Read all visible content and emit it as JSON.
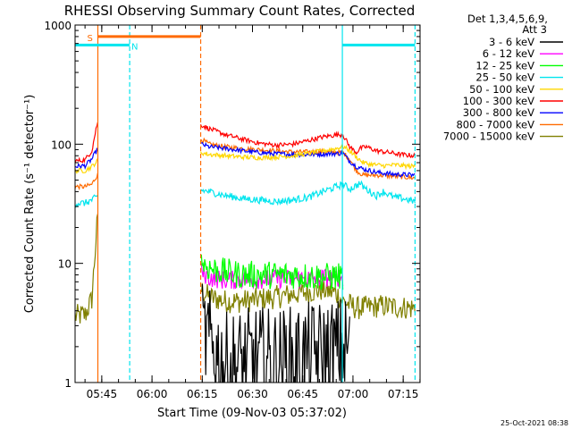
{
  "chart_data": {
    "type": "line",
    "title": "RHESSI Observing Summary Count Rates, Corrected",
    "xlabel": "Start Time (09-Nov-03 05:37:02)",
    "ylabel": "Corrected Count Rate (s⁻¹ detector⁻¹)",
    "y_scale": "log",
    "ylim": [
      1,
      1000
    ],
    "xlim_minutes": [
      0,
      103
    ],
    "x_ticks": [
      {
        "label": "05:45",
        "minute": 7.97
      },
      {
        "label": "06:00",
        "minute": 22.97
      },
      {
        "label": "06:15",
        "minute": 37.97
      },
      {
        "label": "06:30",
        "minute": 52.97
      },
      {
        "label": "06:45",
        "minute": 67.97
      },
      {
        "label": "07:00",
        "minute": 82.97
      },
      {
        "label": "07:15",
        "minute": 97.97
      }
    ],
    "y_ticks": [
      {
        "label": "1",
        "value": 1
      },
      {
        "label": "10",
        "value": 10
      },
      {
        "label": "100",
        "value": 100
      },
      {
        "label": "1000",
        "value": 1000
      }
    ],
    "legend_header": [
      "Det 1,3,4,5,6,9,",
      "Att 3"
    ],
    "timestamp": "25-Oct-2021 08:38",
    "flags": [
      {
        "label": "S",
        "color": "#ff6a00",
        "start": 6.8,
        "end": 37.5,
        "level": 800
      },
      {
        "label": "N",
        "color": "#00e5ee",
        "start": 0,
        "end": 16.3,
        "level": 680
      },
      {
        "label": "",
        "color": "#00e5ee",
        "start": 79.8,
        "end": 101.5,
        "level": 680
      }
    ],
    "vlines": [
      {
        "minute": 6.8,
        "color": "#ff6a00",
        "dash": false
      },
      {
        "minute": 16.3,
        "color": "#00e5ee",
        "dash": true
      },
      {
        "minute": 37.5,
        "color": "#ff6a00",
        "dash": true
      },
      {
        "minute": 79.8,
        "color": "#00e5ee",
        "dash": false
      },
      {
        "minute": 101.5,
        "color": "#00e5ee",
        "dash": true
      }
    ],
    "series": [
      {
        "name": "3 - 6 keV",
        "color": "#000000",
        "noise": 0.45,
        "points": [
          [
            38,
            2.5
          ],
          [
            40,
            2.2
          ],
          [
            42,
            1.8
          ],
          [
            45,
            1.4
          ],
          [
            50,
            1.5
          ],
          [
            55,
            1.6
          ],
          [
            60,
            1.5
          ],
          [
            65,
            1.6
          ],
          [
            70,
            1.7
          ],
          [
            75,
            1.8
          ],
          [
            79,
            1.9
          ],
          [
            82,
            2.0
          ]
        ]
      },
      {
        "name": "6 - 12 keV",
        "color": "#ff00ff",
        "noise": 0.08,
        "points": [
          [
            37.7,
            8.5
          ],
          [
            40,
            7.6
          ],
          [
            45,
            7.2
          ],
          [
            50,
            7.3
          ],
          [
            55,
            7.3
          ],
          [
            60,
            7.4
          ],
          [
            65,
            7.4
          ],
          [
            70,
            7.5
          ],
          [
            75,
            7.6
          ],
          [
            80,
            7.7
          ]
        ]
      },
      {
        "name": "12 - 25 keV",
        "color": "#00ff00",
        "noise": 0.12,
        "points": [
          [
            37.7,
            10.5
          ],
          [
            39,
            9.5
          ],
          [
            42,
            8.8
          ],
          [
            46,
            8.3
          ],
          [
            50,
            8.0
          ],
          [
            55,
            8.0
          ],
          [
            60,
            8.0
          ],
          [
            65,
            8.0
          ],
          [
            70,
            7.8
          ],
          [
            75,
            7.7
          ],
          [
            80,
            7.8
          ]
        ]
      },
      {
        "name": "25 - 50 keV",
        "color": "#00e5ee",
        "noise": 0.03,
        "points": [
          [
            0,
            32
          ],
          [
            3,
            32
          ],
          [
            5,
            34
          ],
          [
            6.6,
            36
          ],
          [
            37.7,
            41
          ],
          [
            40,
            40
          ],
          [
            45,
            37
          ],
          [
            50,
            35
          ],
          [
            55,
            34
          ],
          [
            60,
            33
          ],
          [
            65,
            34
          ],
          [
            70,
            36
          ],
          [
            74,
            40
          ],
          [
            78,
            44
          ],
          [
            80,
            46
          ],
          [
            82,
            42
          ],
          [
            84,
            45
          ],
          [
            85,
            47
          ],
          [
            86,
            44
          ],
          [
            88,
            40
          ],
          [
            90,
            37
          ],
          [
            92,
            40
          ],
          [
            95,
            36
          ],
          [
            98,
            35
          ],
          [
            101.5,
            33
          ]
        ]
      },
      {
        "name": "50 - 100 keV",
        "color": "#ffd700",
        "noise": 0.02,
        "points": [
          [
            0,
            60
          ],
          [
            3,
            60
          ],
          [
            5,
            65
          ],
          [
            6.6,
            72
          ],
          [
            37.7,
            85
          ],
          [
            40,
            82
          ],
          [
            45,
            80
          ],
          [
            50,
            78
          ],
          [
            55,
            77
          ],
          [
            60,
            78
          ],
          [
            65,
            80
          ],
          [
            70,
            84
          ],
          [
            74,
            88
          ],
          [
            78,
            92
          ],
          [
            80,
            96
          ],
          [
            82,
            88
          ],
          [
            84,
            78
          ],
          [
            86,
            70
          ],
          [
            88,
            68
          ],
          [
            92,
            66
          ],
          [
            96,
            67
          ],
          [
            98,
            66
          ],
          [
            101.5,
            65
          ]
        ]
      },
      {
        "name": "100 - 300 keV",
        "color": "#ff0000",
        "noise": 0.02,
        "points": [
          [
            0,
            72
          ],
          [
            3,
            74
          ],
          [
            5,
            88
          ],
          [
            6.6,
            150
          ],
          [
            37.7,
            145
          ],
          [
            40,
            135
          ],
          [
            45,
            120
          ],
          [
            50,
            110
          ],
          [
            55,
            102
          ],
          [
            60,
            98
          ],
          [
            65,
            100
          ],
          [
            70,
            108
          ],
          [
            74,
            115
          ],
          [
            78,
            120
          ],
          [
            80,
            120
          ],
          [
            82,
            95
          ],
          [
            84,
            85
          ],
          [
            85,
            92
          ],
          [
            87,
            95
          ],
          [
            90,
            88
          ],
          [
            94,
            85
          ],
          [
            97,
            82
          ],
          [
            101.5,
            80
          ]
        ]
      },
      {
        "name": "300 - 800 keV",
        "color": "#0000ff",
        "noise": 0.02,
        "points": [
          [
            0,
            65
          ],
          [
            3,
            66
          ],
          [
            5,
            75
          ],
          [
            6.6,
            90
          ],
          [
            37.7,
            100
          ],
          [
            40,
            95
          ],
          [
            45,
            92
          ],
          [
            50,
            88
          ],
          [
            55,
            85
          ],
          [
            60,
            83
          ],
          [
            65,
            82
          ],
          [
            70,
            82
          ],
          [
            75,
            83
          ],
          [
            80,
            84
          ],
          [
            82,
            72
          ],
          [
            84,
            65
          ],
          [
            86,
            62
          ],
          [
            90,
            58
          ],
          [
            95,
            56
          ],
          [
            101.5,
            55
          ]
        ]
      },
      {
        "name": "800 - 7000 keV",
        "color": "#ff6a00",
        "noise": 0.02,
        "points": [
          [
            0,
            44
          ],
          [
            3,
            44
          ],
          [
            5,
            46
          ],
          [
            6.6,
            55
          ],
          [
            37.7,
            110
          ],
          [
            40,
            100
          ],
          [
            45,
            95
          ],
          [
            50,
            92
          ],
          [
            55,
            90
          ],
          [
            60,
            88
          ],
          [
            65,
            86
          ],
          [
            70,
            86
          ],
          [
            75,
            86
          ],
          [
            80,
            85
          ],
          [
            82,
            75
          ],
          [
            84,
            60
          ],
          [
            86,
            55
          ],
          [
            90,
            55
          ],
          [
            95,
            54
          ],
          [
            101.5,
            52
          ]
        ]
      },
      {
        "name": "7000 - 15000 keV",
        "color": "#808000",
        "noise": 0.1,
        "points": [
          [
            0,
            3.6
          ],
          [
            3,
            3.7
          ],
          [
            5,
            5.0
          ],
          [
            6.6,
            22
          ],
          [
            37.7,
            6.0
          ],
          [
            40,
            5.2
          ],
          [
            45,
            4.8
          ],
          [
            50,
            4.8
          ],
          [
            55,
            5.0
          ],
          [
            60,
            5.2
          ],
          [
            65,
            5.5
          ],
          [
            70,
            5.8
          ],
          [
            74,
            6.0
          ],
          [
            78,
            5.6
          ],
          [
            80,
            4.8
          ],
          [
            84,
            4.2
          ],
          [
            88,
            4.3
          ],
          [
            92,
            4.4
          ],
          [
            96,
            4.3
          ],
          [
            101.5,
            4.2
          ]
        ]
      }
    ],
    "gaps": [
      [
        6.8,
        37.5
      ]
    ]
  }
}
